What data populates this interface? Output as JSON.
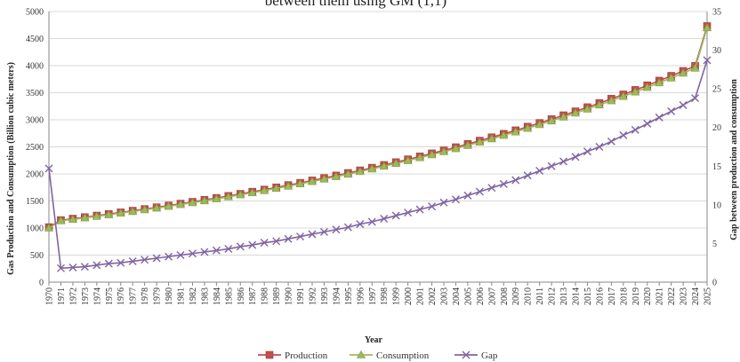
{
  "chart_data": {
    "type": "line",
    "title_fragment": "between them using GM (1,1)",
    "xlabel": "Year",
    "ylabel_left": "Gas Production and Consumption (Billion cubic meters)",
    "ylabel_right": "Gap between production and consumption",
    "ylim_left": [
      0,
      5000
    ],
    "yticks_left": [
      0,
      500,
      1000,
      1500,
      2000,
      2500,
      3000,
      3500,
      4000,
      4500,
      5000
    ],
    "ylim_right": [
      0,
      35
    ],
    "yticks_right": [
      0,
      5,
      10,
      15,
      20,
      25,
      30,
      35
    ],
    "grid": true,
    "legend_position": "bottom",
    "x": [
      1970,
      1971,
      1972,
      1973,
      1974,
      1975,
      1976,
      1977,
      1978,
      1979,
      1980,
      1981,
      1982,
      1983,
      1984,
      1985,
      1986,
      1987,
      1988,
      1989,
      1990,
      1991,
      1992,
      1993,
      1994,
      1995,
      1996,
      1997,
      1998,
      1999,
      2000,
      2001,
      2002,
      2003,
      2004,
      2005,
      2006,
      2007,
      2008,
      2009,
      2010,
      2011,
      2012,
      2013,
      2014,
      2015,
      2016,
      2017,
      2018,
      2019,
      2020,
      2021,
      2022,
      2023,
      2024,
      2025
    ],
    "series": [
      {
        "name": "Production",
        "axis": "left",
        "color": "#c0504d",
        "marker": "square",
        "values": [
          1015,
          1145,
          1172,
          1200,
          1229,
          1258,
          1288,
          1319,
          1350,
          1382,
          1415,
          1449,
          1483,
          1519,
          1555,
          1592,
          1630,
          1669,
          1709,
          1750,
          1792,
          1834,
          1878,
          1923,
          1969,
          2016,
          2064,
          2113,
          2164,
          2215,
          2268,
          2322,
          2378,
          2434,
          2492,
          2552,
          2613,
          2675,
          2739,
          2804,
          2871,
          2940,
          3010,
          3082,
          3155,
          3231,
          3308,
          3387,
          3467,
          3550,
          3635,
          3722,
          3811,
          3901,
          3994,
          4730
        ]
      },
      {
        "name": "Consumption",
        "axis": "left",
        "color": "#9bbb59",
        "marker": "triangle",
        "values": [
          1000,
          1133,
          1160,
          1188,
          1216,
          1245,
          1275,
          1305,
          1336,
          1368,
          1401,
          1434,
          1468,
          1503,
          1539,
          1576,
          1614,
          1652,
          1692,
          1732,
          1773,
          1816,
          1859,
          1904,
          1949,
          1995,
          2043,
          2092,
          2142,
          2193,
          2245,
          2299,
          2354,
          2410,
          2467,
          2526,
          2586,
          2648,
          2711,
          2776,
          2842,
          2910,
          2979,
          3051,
          3123,
          3198,
          3274,
          3352,
          3432,
          3514,
          3598,
          3684,
          3772,
          3862,
          3954,
          4700
        ]
      },
      {
        "name": "Gap",
        "axis": "right",
        "color": "#8064a2",
        "marker": "x",
        "values": [
          14.7,
          1.8,
          1.9,
          2.0,
          2.2,
          2.4,
          2.5,
          2.7,
          2.9,
          3.1,
          3.3,
          3.5,
          3.7,
          3.9,
          4.1,
          4.3,
          4.6,
          4.8,
          5.1,
          5.3,
          5.6,
          5.9,
          6.2,
          6.5,
          6.8,
          7.1,
          7.5,
          7.8,
          8.2,
          8.6,
          9.0,
          9.4,
          9.8,
          10.3,
          10.7,
          11.2,
          11.7,
          12.2,
          12.7,
          13.2,
          13.8,
          14.4,
          15.0,
          15.6,
          16.2,
          16.9,
          17.5,
          18.2,
          19.0,
          19.7,
          20.5,
          21.3,
          22.1,
          22.9,
          23.8,
          28.7
        ]
      }
    ]
  }
}
